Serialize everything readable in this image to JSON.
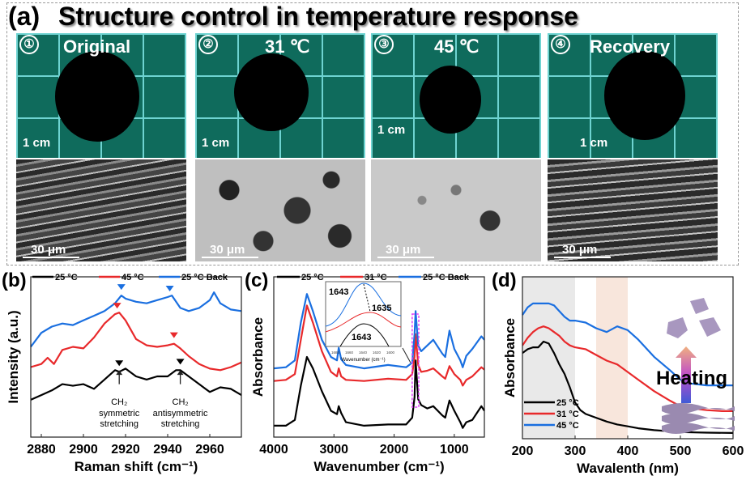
{
  "panel_a": {
    "letter": "(a)",
    "title": "Structure control in temperature response",
    "photos": [
      {
        "num": "①",
        "label": "Original",
        "scale": "1 cm",
        "sem_scale": "30 μm"
      },
      {
        "num": "②",
        "label": "31 ℃",
        "scale": "1 cm",
        "sem_scale": "30 μm"
      },
      {
        "num": "③",
        "label": "45 ℃",
        "scale": "1 cm",
        "sem_scale": "30 μm"
      },
      {
        "num": "④",
        "label": "Recovery",
        "scale": "1 cm",
        "sem_scale": "30 μm"
      }
    ]
  },
  "chart_data": [
    {
      "panel": "(b)",
      "type": "line",
      "xlabel": "Raman shift (cm⁻¹)",
      "ylabel": "Intensity (a.u.)",
      "xlim": [
        2875,
        2975
      ],
      "xticks": [
        "2880",
        "2900",
        "2920",
        "2940",
        "2960"
      ],
      "legend": [
        "25 °C",
        "45 °C",
        "25 °C Back"
      ],
      "legend_position": "top",
      "annotations": [
        {
          "text1": "CH₂",
          "text2": "symmetric",
          "text3": "stretching",
          "x": 2917
        },
        {
          "text1": "CH₂",
          "text2": "antisymmetric",
          "text3": "stretching",
          "x": 2946
        }
      ],
      "series": [
        {
          "name": "25 °C",
          "color": "#000000",
          "x": [
            2875,
            2880,
            2885,
            2890,
            2895,
            2900,
            2905,
            2910,
            2915,
            2917,
            2920,
            2925,
            2930,
            2935,
            2940,
            2944,
            2946,
            2950,
            2955,
            2960,
            2965,
            2970,
            2975
          ],
          "y": [
            0.9,
            1.2,
            1.5,
            1.9,
            1.8,
            1.9,
            1.6,
            2.2,
            2.8,
            2.7,
            2.9,
            2.4,
            2.2,
            2.4,
            2.4,
            2.8,
            2.8,
            2.4,
            1.9,
            1.4,
            1.7,
            1.6,
            1.2
          ]
        },
        {
          "name": "45 °C",
          "color": "#e8292b",
          "x": [
            2875,
            2880,
            2883,
            2886,
            2890,
            2895,
            2900,
            2905,
            2910,
            2915,
            2917,
            2920,
            2925,
            2930,
            2935,
            2940,
            2943,
            2946,
            2950,
            2955,
            2960,
            2965,
            2970,
            2975
          ],
          "y": [
            3.0,
            3.2,
            3.6,
            3.2,
            4.1,
            4.3,
            4.2,
            4.9,
            5.8,
            6.4,
            6.5,
            6.0,
            4.8,
            4.4,
            4.3,
            4.4,
            4.5,
            4.2,
            3.7,
            3.2,
            2.9,
            2.8,
            3.0,
            3.3
          ]
        },
        {
          "name": "25 °C Back",
          "color": "#1a6fe0",
          "x": [
            2875,
            2880,
            2885,
            2890,
            2895,
            2900,
            2905,
            2910,
            2915,
            2918,
            2920,
            2925,
            2930,
            2935,
            2940,
            2942,
            2946,
            2950,
            2955,
            2960,
            2962,
            2965,
            2970,
            2975
          ],
          "y": [
            4.3,
            5.2,
            5.6,
            5.8,
            5.7,
            6.0,
            6.3,
            6.6,
            7.1,
            7.6,
            7.4,
            7.2,
            7.1,
            7.3,
            7.5,
            7.6,
            6.8,
            6.6,
            6.8,
            7.3,
            7.8,
            7.1,
            6.7,
            6.6
          ]
        }
      ],
      "markers": [
        {
          "series": "25 °C",
          "x": [
            2917,
            2946
          ]
        },
        {
          "series": "45 °C",
          "x": [
            2916,
            2943
          ]
        },
        {
          "series": "25 °C Back",
          "x": [
            2918,
            2941
          ]
        }
      ]
    },
    {
      "panel": "(c)",
      "type": "line",
      "xlabel": "Wavenumber (cm⁻¹)",
      "ylabel": "Absorbance",
      "xlim": [
        4000,
        500
      ],
      "xticks": [
        "4000",
        "3000",
        "2000",
        "1000"
      ],
      "legend": [
        "25 °C",
        "31 °C",
        "25 °C Back"
      ],
      "legend_position": "top",
      "inset": {
        "xlabel": "Wavenumber (cm⁻¹)",
        "xticks": [
          "1680",
          "1660",
          "1640",
          "1620",
          "1600"
        ],
        "labels": [
          "1643",
          "1635",
          "1643"
        ]
      },
      "series": [
        {
          "name": "25 °C",
          "color": "#000000",
          "x": [
            4000,
            3800,
            3650,
            3550,
            3450,
            3350,
            3200,
            3050,
            2950,
            2920,
            2880,
            2800,
            2500,
            2100,
            1800,
            1700,
            1660,
            1643,
            1600,
            1550,
            1450,
            1350,
            1200,
            1150,
            1080,
            1000,
            900,
            860,
            800,
            700,
            550,
            500
          ],
          "y": [
            0.5,
            0.5,
            1,
            4,
            6.5,
            5.5,
            3.5,
            1.8,
            1.5,
            2.2,
            1.6,
            0.8,
            0.5,
            0.6,
            0.6,
            1.2,
            3,
            6.2,
            2.8,
            2.3,
            2,
            2.2,
            1.4,
            1.2,
            2.7,
            1.8,
            0.8,
            0.3,
            0.8,
            1,
            2.2,
            1.8
          ]
        },
        {
          "name": "31 °C",
          "color": "#e8292b",
          "x": [
            4000,
            3800,
            3650,
            3550,
            3450,
            3350,
            3200,
            3050,
            2950,
            2920,
            2880,
            2800,
            2500,
            2100,
            1800,
            1700,
            1660,
            1643,
            1600,
            1550,
            1450,
            1350,
            1200,
            1150,
            1080,
            1000,
            900,
            860,
            800,
            700,
            550,
            500
          ],
          "y": [
            4.4,
            4.5,
            5,
            8,
            11,
            9.5,
            7,
            5.2,
            4.8,
            5.5,
            4.8,
            4.5,
            4.4,
            4.6,
            4.5,
            5,
            6.5,
            8.5,
            5.8,
            5.2,
            5.3,
            5.5,
            4.8,
            4.6,
            5.7,
            5,
            4.5,
            4,
            4.5,
            4.8,
            5.6,
            5.4
          ]
        },
        {
          "name": "25 °C Back",
          "color": "#1a6fe0",
          "x": [
            4000,
            3800,
            3650,
            3550,
            3450,
            3350,
            3200,
            3050,
            2950,
            2920,
            2880,
            2800,
            2500,
            2100,
            1800,
            1700,
            1660,
            1643,
            1600,
            1550,
            1450,
            1350,
            1200,
            1150,
            1080,
            1000,
            900,
            860,
            800,
            700,
            550,
            500
          ],
          "y": [
            5.5,
            5.6,
            6.2,
            9.5,
            12,
            10.5,
            8,
            6.5,
            6.2,
            7.3,
            6.3,
            5.8,
            5.5,
            5.8,
            5.6,
            6,
            8.5,
            10.5,
            7.5,
            7,
            7.5,
            8,
            6.8,
            6.5,
            8.8,
            7.2,
            6.2,
            5.6,
            6.6,
            7.2,
            8.3,
            8
          ]
        }
      ]
    },
    {
      "panel": "(d)",
      "type": "line",
      "xlabel": "Wavalenth (nm)",
      "ylabel": "Absorbance",
      "xlim": [
        200,
        600
      ],
      "xticks": [
        "200",
        "300",
        "400",
        "500",
        "600"
      ],
      "legend": [
        "25 °C",
        "31 °C",
        "45 °C"
      ],
      "legend_position": "bottom-left",
      "shaded_regions": [
        [
          200,
          300
        ],
        [
          340,
          400
        ]
      ],
      "shade_colors": [
        "#e9e9e9",
        "#f8e6dc"
      ],
      "annotation": "Heating",
      "series": [
        {
          "name": "25 °C",
          "color": "#000000",
          "x": [
            200,
            210,
            220,
            230,
            240,
            250,
            260,
            270,
            280,
            290,
            300,
            310,
            320,
            340,
            360,
            380,
            400,
            420,
            450,
            500,
            550,
            600
          ],
          "y": [
            4.2,
            4.4,
            4.5,
            4.5,
            4.8,
            4.7,
            4.2,
            3.6,
            3.1,
            2.4,
            1.6,
            1.2,
            1.0,
            0.8,
            0.6,
            0.45,
            0.35,
            0.25,
            0.15,
            0.05,
            0.02,
            0
          ]
        },
        {
          "name": "31 °C",
          "color": "#e8292b",
          "x": [
            200,
            210,
            220,
            230,
            240,
            250,
            260,
            270,
            280,
            290,
            300,
            320,
            340,
            360,
            380,
            400,
            420,
            450,
            480,
            500,
            520,
            550,
            580,
            600
          ],
          "y": [
            4.6,
            5.0,
            5.3,
            5.5,
            5.6,
            5.5,
            5.3,
            5.1,
            4.8,
            4.6,
            4.5,
            4.4,
            4.1,
            3.8,
            3.6,
            3.2,
            2.8,
            2.2,
            1.7,
            1.4,
            1.3,
            1.2,
            1.15,
            1.15
          ]
        },
        {
          "name": "45 °C",
          "color": "#1a6fe0",
          "x": [
            200,
            210,
            220,
            230,
            240,
            250,
            260,
            270,
            280,
            290,
            300,
            320,
            340,
            360,
            380,
            400,
            420,
            450,
            480,
            500,
            520,
            550,
            580,
            600
          ],
          "y": [
            6.2,
            6.6,
            6.8,
            6.8,
            6.8,
            6.8,
            6.7,
            6.4,
            6.1,
            5.9,
            5.9,
            5.8,
            5.5,
            5.3,
            5.6,
            5.4,
            4.9,
            4.0,
            3.3,
            2.8,
            2.6,
            2.5,
            2.5,
            2.5
          ]
        }
      ]
    }
  ]
}
